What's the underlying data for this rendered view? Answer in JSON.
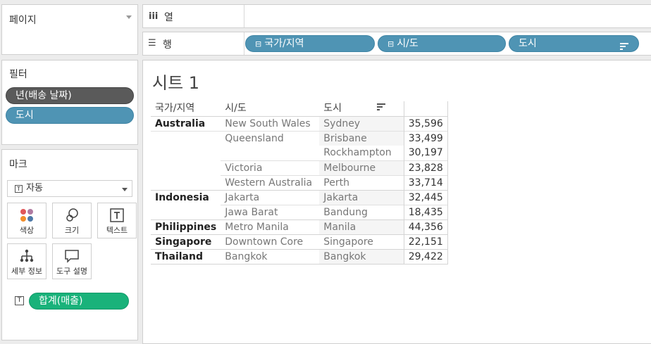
{
  "pages_panel": {
    "title": "페이지"
  },
  "filters_panel": {
    "title": "필터",
    "pills": [
      "년(배송 날짜)",
      "도시"
    ]
  },
  "marks_panel": {
    "title": "마크",
    "mark_type": "자동",
    "buttons": [
      {
        "label": "색상",
        "icon": "color-icon"
      },
      {
        "label": "크기",
        "icon": "size-icon"
      },
      {
        "label": "텍스트",
        "icon": "text-icon"
      },
      {
        "label": "세부 정보",
        "icon": "detail-icon"
      },
      {
        "label": "도구 설명",
        "icon": "tooltip-icon"
      }
    ],
    "text_pill": "합계(매출)"
  },
  "columns_shelf": {
    "label": "열"
  },
  "rows_shelf": {
    "label": "행",
    "pills": [
      "국가/지역",
      "시/도",
      "도시"
    ]
  },
  "sheet": {
    "title": "시트 1",
    "headers": [
      "국가/지역",
      "시/도",
      "도시"
    ],
    "rows": [
      {
        "country": "Australia",
        "state": "New South Wales",
        "city": "Sydney",
        "value": "35,596"
      },
      {
        "country": "",
        "state": "Queensland",
        "city": "Brisbane",
        "value": "33,499"
      },
      {
        "country": "",
        "state": "",
        "city": "Rockhampton",
        "value": "30,197"
      },
      {
        "country": "",
        "state": "Victoria",
        "city": "Melbourne",
        "value": "23,828"
      },
      {
        "country": "",
        "state": "Western Australia",
        "city": "Perth",
        "value": "33,714"
      },
      {
        "country": "Indonesia",
        "state": "Jakarta",
        "city": "Jakarta",
        "value": "32,445"
      },
      {
        "country": "",
        "state": "Jawa Barat",
        "city": "Bandung",
        "value": "18,435"
      },
      {
        "country": "Philippines",
        "state": "Metro Manila",
        "city": "Manila",
        "value": "44,356"
      },
      {
        "country": "Singapore",
        "state": "Downtown Core",
        "city": "Singapore",
        "value": "22,151"
      },
      {
        "country": "Thailand",
        "state": "Bangkok",
        "city": "Bangkok",
        "value": "29,422"
      }
    ]
  },
  "colors": {
    "pill_blue": "#4f94b4",
    "pill_gray": "#5a5a5a",
    "pill_green": "#19b27a"
  }
}
